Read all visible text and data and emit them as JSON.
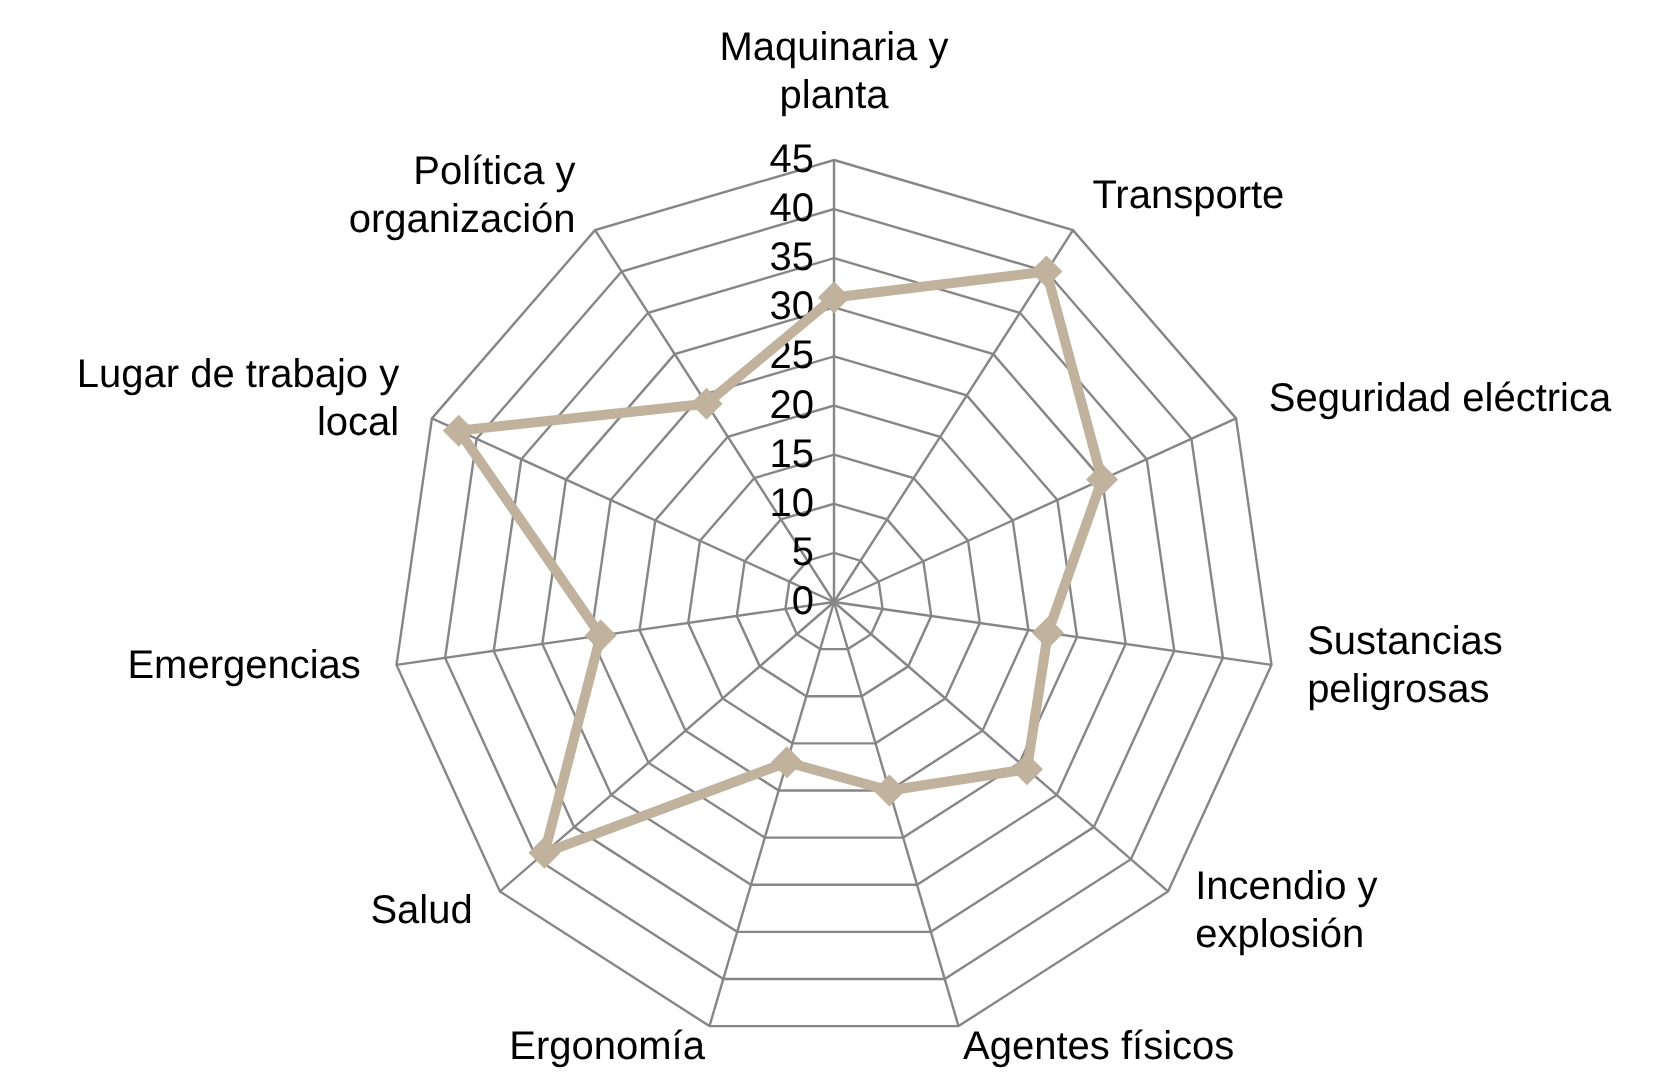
{
  "chart_data": {
    "type": "radar",
    "categories": [
      "Maquinaria y planta",
      "Transporte",
      "Seguridad eléctrica",
      "Sustancias peligrosas",
      "Incendio y explosión",
      "Agentes físicos",
      "Ergonomía",
      "Salud",
      "Emergencias",
      "Lugar de trabajo y local",
      "Política y organización"
    ],
    "series": [
      {
        "color": "#c0b29c",
        "values": [
          31,
          40,
          30,
          22,
          26,
          20,
          17,
          39,
          24,
          42,
          24
        ]
      }
    ],
    "ylim": [
      0,
      45
    ],
    "yticks": [
      0,
      5,
      10,
      15,
      20,
      25,
      30,
      35,
      40,
      45
    ],
    "grid": true,
    "marker": "diamond",
    "line_style": "solid"
  }
}
